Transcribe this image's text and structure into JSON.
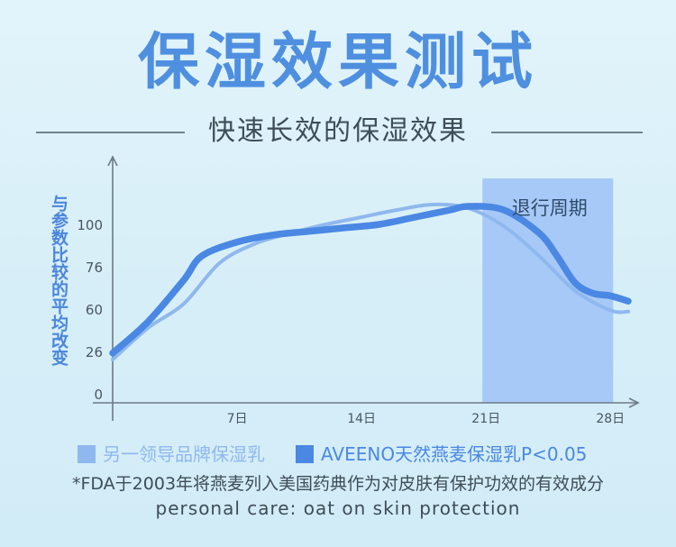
{
  "header": {
    "title": "保湿效果测试",
    "subtitle": "快速长效的保湿效果"
  },
  "colors": {
    "accent": "#4f8fe0",
    "series_primary": "#4a88e3",
    "series_secondary": "#8fb8ee",
    "washout_band": "#a7c9f7",
    "text_dark": "#3e4d57"
  },
  "chart_data": {
    "type": "line",
    "title": "",
    "xlabel": "",
    "ylabel": "与参数比较的平均改变",
    "x_ticks": [
      {
        "value": 7,
        "label": "7日"
      },
      {
        "value": 14,
        "label": "14日"
      },
      {
        "value": 21,
        "label": "21日"
      },
      {
        "value": 28,
        "label": "28日"
      }
    ],
    "y_ticks": [
      0,
      26,
      60,
      76,
      100
    ],
    "xlim": [
      0,
      29
    ],
    "grid": false,
    "legend_position": "bottom",
    "washout_period": {
      "start": 21,
      "end": 28,
      "label": "退行周期"
    },
    "series": [
      {
        "name": "另一领导品牌保湿乳",
        "color": "#8fb8ee",
        "points": [
          [
            0,
            21
          ],
          [
            2,
            45
          ],
          [
            4,
            62
          ],
          [
            6,
            78
          ],
          [
            8,
            89
          ],
          [
            10,
            95
          ],
          [
            12,
            100
          ],
          [
            14,
            104
          ],
          [
            16,
            108
          ],
          [
            18,
            111
          ],
          [
            20,
            109
          ],
          [
            22,
            99
          ],
          [
            24,
            82
          ],
          [
            26,
            67
          ],
          [
            28,
            59
          ],
          [
            29,
            58
          ]
        ]
      },
      {
        "name": "AVEENO天然燕麦保湿乳P<0.05",
        "color": "#4a88e3",
        "points": [
          [
            0,
            25
          ],
          [
            2,
            50
          ],
          [
            4,
            71
          ],
          [
            5,
            82
          ],
          [
            7,
            90
          ],
          [
            9,
            94
          ],
          [
            11,
            96
          ],
          [
            13,
            98
          ],
          [
            15,
            100
          ],
          [
            17,
            104
          ],
          [
            19,
            108
          ],
          [
            20,
            110
          ],
          [
            22,
            108
          ],
          [
            24,
            95
          ],
          [
            25,
            82
          ],
          [
            26,
            70
          ],
          [
            27,
            66
          ],
          [
            28,
            65
          ],
          [
            29,
            63
          ]
        ]
      }
    ]
  },
  "legend": [
    {
      "label": "另一领导品牌保湿乳"
    },
    {
      "label": "AVEENO天然燕麦保湿乳P<0.05"
    }
  ],
  "footnote": {
    "line1": "*FDA于2003年将燕麦列入美国药典作为对皮肤有保护功效的有效成分",
    "line2": "personal care: oat on skin protection"
  }
}
